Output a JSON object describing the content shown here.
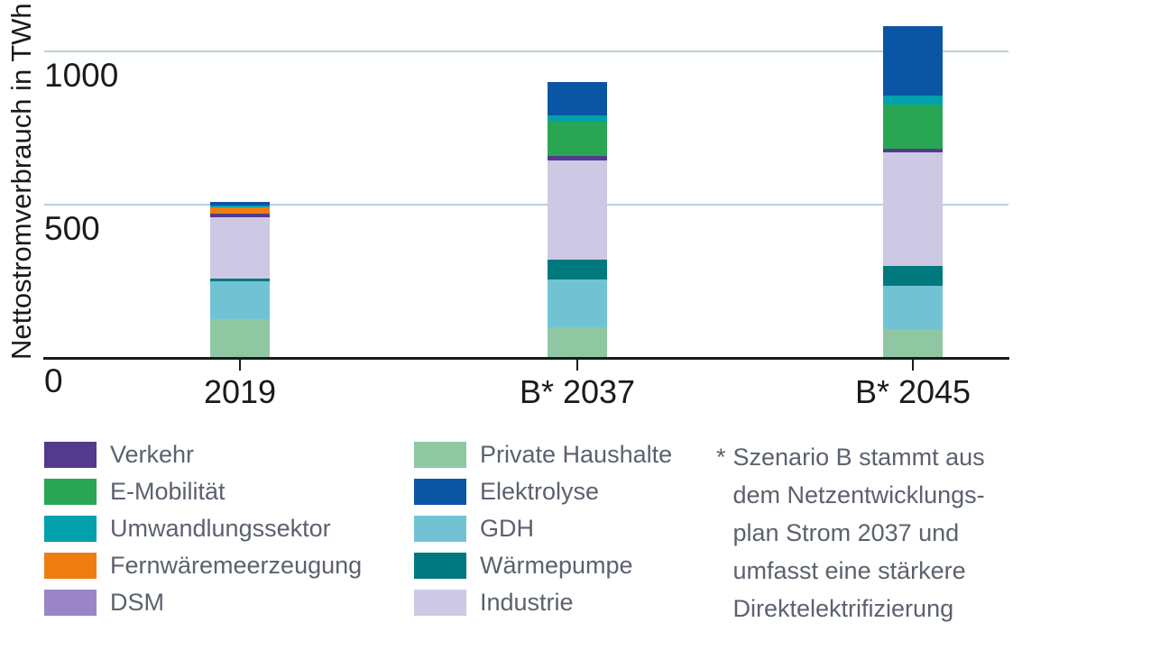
{
  "chart_data": {
    "type": "bar",
    "stacked": true,
    "title": "",
    "ylabel": "Nettostromverbrauch in TWh",
    "xlabel": "",
    "categories": [
      "2019",
      "B* 2037",
      "B* 2045"
    ],
    "yticks": [
      0,
      500,
      1000
    ],
    "ylim": [
      0,
      1170
    ],
    "grid": "horizontal",
    "legend_position": "bottom",
    "series": [
      {
        "name": "Private Haushalte",
        "color": "#8fc7a3",
        "values": [
          125,
          100,
          95
        ]
      },
      {
        "name": "GDH",
        "color": "#71c3d4",
        "values": [
          125,
          155,
          140
        ]
      },
      {
        "name": "Wärmepumpe",
        "color": "#00797e",
        "values": [
          10,
          65,
          65
        ]
      },
      {
        "name": "Industrie",
        "color": "#cdc8e4",
        "values": [
          200,
          325,
          370
        ]
      },
      {
        "name": "DSM",
        "color": "#9a85c8",
        "values": [
          0,
          0,
          0
        ]
      },
      {
        "name": "Verkehr",
        "color": "#543a8d",
        "values": [
          10,
          15,
          12
        ]
      },
      {
        "name": "E-Mobilität",
        "color": "#29a653",
        "values": [
          0,
          110,
          145
        ]
      },
      {
        "name": "Fernwäremeerzeugung",
        "color": "#ed7d11",
        "values": [
          20,
          0,
          0
        ]
      },
      {
        "name": "Umwandlungssektor",
        "color": "#00a1ab",
        "values": [
          8,
          20,
          30
        ]
      },
      {
        "name": "Elektrolyse",
        "color": "#0b56a4",
        "values": [
          12,
          110,
          225
        ]
      }
    ]
  },
  "legend": {
    "columns": [
      [
        {
          "label": "Verkehr",
          "color": "#543a8d"
        },
        {
          "label": "E-Mobilität",
          "color": "#29a653"
        },
        {
          "label": "Umwandlungssektor",
          "color": "#00a1ab"
        },
        {
          "label": "Fernwäremeerzeugung",
          "color": "#ed7d11"
        },
        {
          "label": "DSM",
          "color": "#9a85c8"
        }
      ],
      [
        {
          "label": "Private Haushalte",
          "color": "#8fc7a3"
        },
        {
          "label": "Elektrolyse",
          "color": "#0b56a4"
        },
        {
          "label": "GDH",
          "color": "#71c3d4"
        },
        {
          "label": "Wärmepumpe",
          "color": "#00797e"
        },
        {
          "label": "Industrie",
          "color": "#cdc8e4"
        }
      ]
    ]
  },
  "footnote": {
    "marker": "*",
    "lines": [
      "Szenario B stammt aus",
      "dem Netzentwicklungs-",
      "plan Strom 2037 und",
      "umfasst eine stärkere",
      "Direktelektrifizierung"
    ]
  },
  "styles": {
    "grid_color": "#bccfd6",
    "axis_color": "#1a1a1a",
    "tick_label_color": "#1a1a1a",
    "legend_text_color": "#5b616e",
    "background": "#ffffff"
  }
}
